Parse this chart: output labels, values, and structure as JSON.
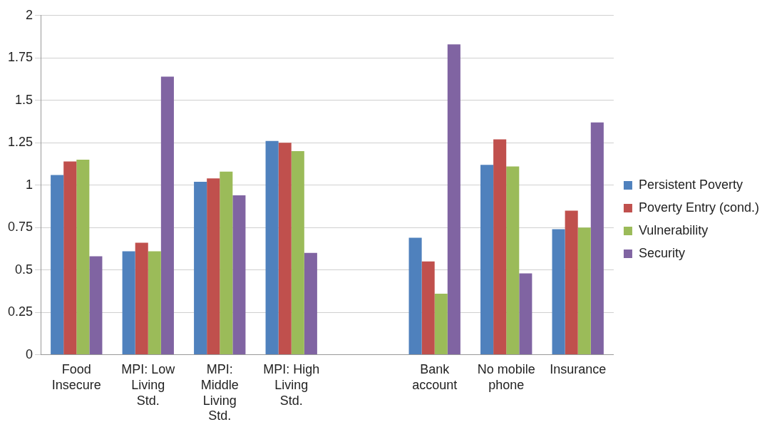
{
  "chart_data": {
    "type": "bar",
    "categories": [
      "Food Insecure",
      "MPI: Low Living Std.",
      "MPI: Middle Living Std.",
      "MPI: High Living Std.",
      null,
      "Bank account",
      "No mobile phone",
      "Insurance"
    ],
    "series": [
      {
        "name": "Persistent Poverty",
        "color": "#4f81bd",
        "values": [
          1.06,
          0.61,
          1.02,
          1.26,
          null,
          0.69,
          1.12,
          0.74
        ]
      },
      {
        "name": "Poverty Entry (cond.)",
        "color": "#c0504d",
        "values": [
          1.14,
          0.66,
          1.04,
          1.25,
          null,
          0.55,
          1.27,
          0.85
        ]
      },
      {
        "name": "Vulnerability",
        "color": "#9bbb59",
        "values": [
          1.15,
          0.61,
          1.08,
          1.2,
          null,
          0.36,
          1.11,
          0.75
        ]
      },
      {
        "name": "Security",
        "color": "#8064a2",
        "values": [
          0.58,
          1.64,
          0.94,
          0.6,
          null,
          1.83,
          0.48,
          1.37
        ]
      }
    ],
    "ylim": [
      0,
      2
    ],
    "yticks": [
      0,
      0.25,
      0.5,
      0.75,
      1,
      1.25,
      1.5,
      1.75,
      2
    ],
    "grid": "y",
    "legend": "right"
  }
}
